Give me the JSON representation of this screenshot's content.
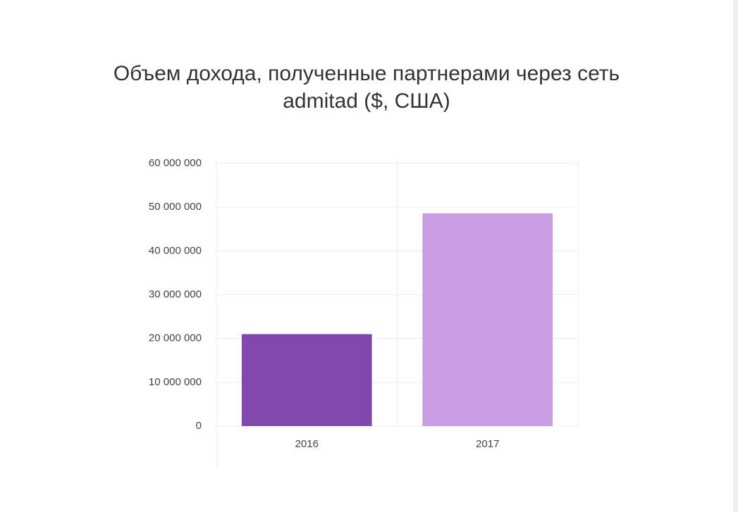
{
  "chart_data": {
    "type": "bar",
    "title": "Объем дохода, полученные партнерами через сеть admitad ($, США)",
    "categories": [
      "2016",
      "2017"
    ],
    "values": [
      21000000,
      48600000
    ],
    "colors": [
      "#8047ad",
      "#c89de3"
    ],
    "ylim": [
      0,
      60000000
    ],
    "yticks": [
      0,
      {
        "value": 10000000,
        "label": "10 000 000"
      },
      {
        "value": 20000000,
        "label": "20 000 000"
      },
      {
        "value": 30000000,
        "label": "30 000 000"
      },
      {
        "value": 40000000,
        "label": "40 000 000"
      },
      {
        "value": 50000000,
        "label": "50 000 000"
      },
      {
        "value": 60000000,
        "label": "60 000 000"
      }
    ],
    "grid": true
  }
}
